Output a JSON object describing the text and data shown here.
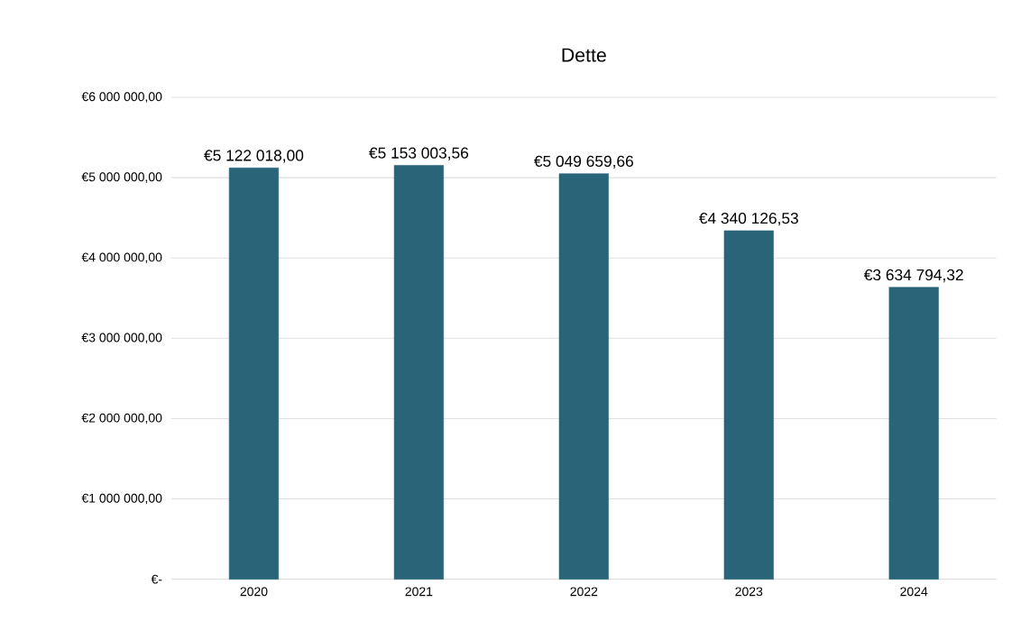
{
  "chart_data": {
    "type": "bar",
    "title": "Dette",
    "categories": [
      "2020",
      "2021",
      "2022",
      "2023",
      "2024"
    ],
    "values": [
      5122018.0,
      5153003.56,
      5049659.66,
      4340126.53,
      3634794.32
    ],
    "value_labels": [
      "€5 122 018,00",
      "€5 153 003,56",
      "€5 049 659,66",
      "€4 340 126,53",
      "€3 634 794,32"
    ],
    "color": "#2a6478",
    "ylim": [
      0,
      6000000
    ],
    "yticks": [
      {
        "value": 0,
        "label": "€-"
      },
      {
        "value": 1000000,
        "label": "€1 000 000,00"
      },
      {
        "value": 2000000,
        "label": "€2 000 000,00"
      },
      {
        "value": 3000000,
        "label": "€3 000 000,00"
      },
      {
        "value": 4000000,
        "label": "€4 000 000,00"
      },
      {
        "value": 5000000,
        "label": "€5 000 000,00"
      },
      {
        "value": 6000000,
        "label": "€6 000 000,00"
      }
    ],
    "grid": "y"
  }
}
